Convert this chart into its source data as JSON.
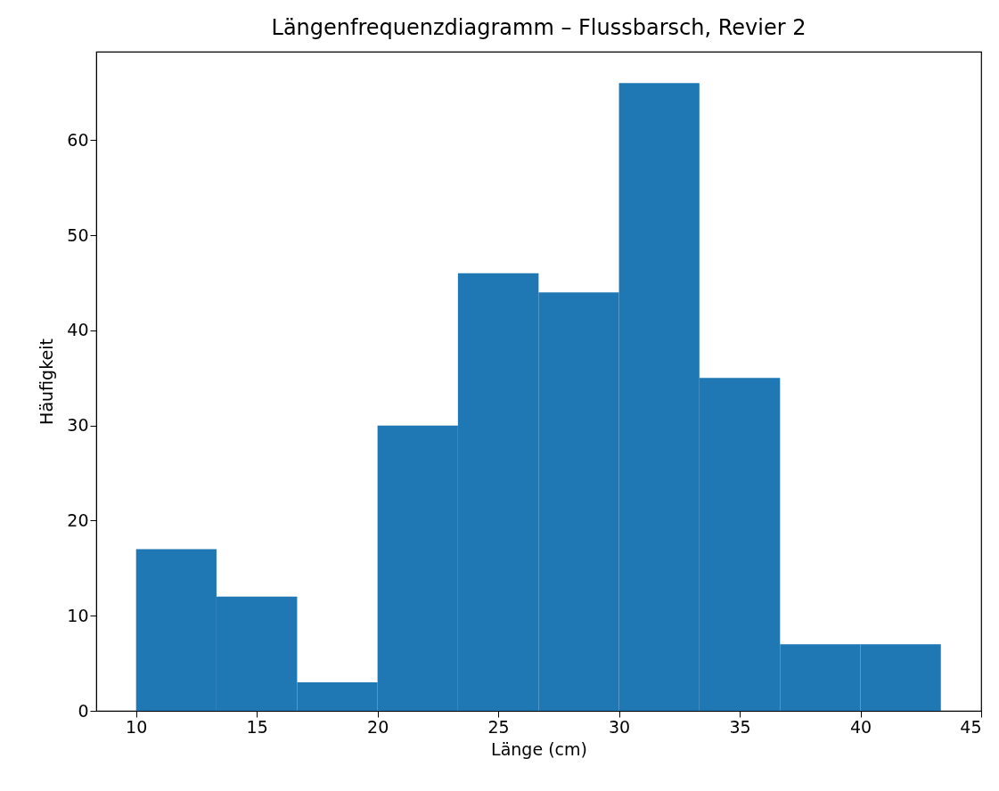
{
  "chart_data": {
    "type": "histogram",
    "title": "Längenfrequenzdiagramm – Flussbarsch, Revier 2",
    "xlabel": "Länge (cm)",
    "ylabel": "Häufigkeit",
    "bins": [
      10,
      13.33,
      16.67,
      20,
      23.33,
      26.67,
      30,
      33.33,
      36.67,
      40,
      43.33
    ],
    "values": [
      17,
      12,
      3,
      30,
      46,
      44,
      66,
      35,
      7,
      7
    ],
    "color": "#1f77b4",
    "xlim": [
      8.35,
      45
    ],
    "ylim": [
      0,
      69.3
    ],
    "xticks": [
      10,
      15,
      20,
      25,
      30,
      35,
      40,
      45
    ],
    "yticks": [
      0,
      10,
      20,
      30,
      40,
      50,
      60
    ]
  }
}
